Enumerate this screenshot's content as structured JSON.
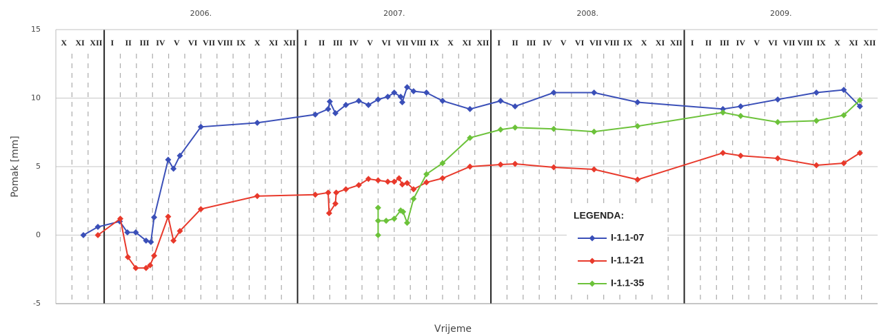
{
  "chart_data": {
    "type": "line",
    "ylabel": "Pomak [mm]",
    "xlabel": "Vrijeme",
    "legend_title": "LEGENDA:",
    "xlim": [
      0,
      51
    ],
    "ylim": [
      -5,
      15
    ],
    "yticks": [
      -5,
      0,
      5,
      10,
      15
    ],
    "grid": true,
    "year_ticks": [
      {
        "value": 9,
        "label": "2006."
      },
      {
        "value": 21,
        "label": "2007."
      },
      {
        "value": 33,
        "label": "2008."
      },
      {
        "value": 45,
        "label": "2009."
      }
    ],
    "xticks": [
      {
        "value": 0.5,
        "label": "X"
      },
      {
        "value": 1.5,
        "label": "XI"
      },
      {
        "value": 2.5,
        "label": "XII"
      },
      {
        "value": 3.5,
        "label": "I"
      },
      {
        "value": 4.5,
        "label": "II"
      },
      {
        "value": 5.5,
        "label": "III"
      },
      {
        "value": 6.5,
        "label": "IV"
      },
      {
        "value": 7.5,
        "label": "V"
      },
      {
        "value": 8.5,
        "label": "VI"
      },
      {
        "value": 9.5,
        "label": "VII"
      },
      {
        "value": 10.5,
        "label": "VIII"
      },
      {
        "value": 11.5,
        "label": "IX"
      },
      {
        "value": 12.5,
        "label": "X"
      },
      {
        "value": 13.5,
        "label": "XI"
      },
      {
        "value": 14.5,
        "label": "XII"
      },
      {
        "value": 15.5,
        "label": "I"
      },
      {
        "value": 16.5,
        "label": "II"
      },
      {
        "value": 17.5,
        "label": "III"
      },
      {
        "value": 18.5,
        "label": "IV"
      },
      {
        "value": 19.5,
        "label": "V"
      },
      {
        "value": 20.5,
        "label": "VI"
      },
      {
        "value": 21.5,
        "label": "VII"
      },
      {
        "value": 22.5,
        "label": "VIII"
      },
      {
        "value": 23.5,
        "label": "IX"
      },
      {
        "value": 24.5,
        "label": "X"
      },
      {
        "value": 25.5,
        "label": "XI"
      },
      {
        "value": 26.5,
        "label": "XII"
      },
      {
        "value": 27.5,
        "label": "I"
      },
      {
        "value": 28.5,
        "label": "II"
      },
      {
        "value": 29.5,
        "label": "III"
      },
      {
        "value": 30.5,
        "label": "IV"
      },
      {
        "value": 31.5,
        "label": "V"
      },
      {
        "value": 32.5,
        "label": "VI"
      },
      {
        "value": 33.5,
        "label": "VII"
      },
      {
        "value": 34.5,
        "label": "VIII"
      },
      {
        "value": 35.5,
        "label": "IX"
      },
      {
        "value": 36.5,
        "label": "X"
      },
      {
        "value": 37.5,
        "label": "XI"
      },
      {
        "value": 38.5,
        "label": "XII"
      },
      {
        "value": 39.5,
        "label": "I"
      },
      {
        "value": 40.5,
        "label": "II"
      },
      {
        "value": 41.5,
        "label": "III"
      },
      {
        "value": 42.5,
        "label": "IV"
      },
      {
        "value": 43.5,
        "label": "V"
      },
      {
        "value": 44.5,
        "label": "VI"
      },
      {
        "value": 45.5,
        "label": "VII"
      },
      {
        "value": 46.5,
        "label": "VIII"
      },
      {
        "value": 47.5,
        "label": "IX"
      },
      {
        "value": 48.5,
        "label": "X"
      },
      {
        "value": 49.5,
        "label": "XI"
      },
      {
        "value": 50.5,
        "label": "XII"
      }
    ],
    "series": [
      {
        "name": "I-1.1-07",
        "color": "#3a4fb8",
        "x": [
          1.71,
          2.61,
          3.97,
          4.44,
          4.96,
          5.6,
          5.9,
          6.1,
          6.97,
          7.3,
          7.7,
          9.0,
          12.5,
          16.1,
          16.9,
          17.0,
          17.35,
          18.0,
          18.8,
          19.4,
          20.0,
          20.6,
          21.0,
          21.4,
          21.5,
          21.8,
          22.2,
          23.0,
          24.0,
          25.7,
          27.6,
          28.5,
          30.9,
          33.4,
          36.1,
          41.4,
          42.5,
          44.8,
          47.2,
          48.9,
          49.9
        ],
        "values": [
          0.0,
          0.6,
          1.0,
          0.2,
          0.2,
          -0.4,
          -0.5,
          1.3,
          5.5,
          4.85,
          5.8,
          7.9,
          8.2,
          8.8,
          9.2,
          9.75,
          8.9,
          9.5,
          9.8,
          9.5,
          9.9,
          10.1,
          10.4,
          10.1,
          9.7,
          10.8,
          10.5,
          10.4,
          9.8,
          9.2,
          9.8,
          9.4,
          10.4,
          10.4,
          9.7,
          9.2,
          9.4,
          9.9,
          10.4,
          10.6,
          9.4
        ]
      },
      {
        "name": "I-1.1-21",
        "color": "#e8392b",
        "x": [
          2.61,
          4.0,
          4.47,
          4.96,
          5.6,
          5.85,
          6.1,
          6.97,
          7.3,
          7.7,
          9.0,
          12.5,
          16.1,
          16.9,
          16.96,
          17.35,
          17.4,
          18.0,
          18.8,
          19.4,
          20.0,
          20.6,
          21.0,
          21.3,
          21.5,
          21.8,
          22.2,
          23.0,
          24.0,
          25.7,
          27.6,
          28.5,
          30.9,
          33.4,
          36.1,
          41.4,
          42.5,
          44.8,
          47.2,
          48.9,
          49.9
        ],
        "values": [
          0.0,
          1.2,
          -1.6,
          -2.4,
          -2.4,
          -2.2,
          -1.5,
          1.35,
          -0.4,
          0.3,
          1.9,
          2.85,
          2.95,
          3.1,
          1.6,
          2.3,
          3.1,
          3.35,
          3.65,
          4.1,
          4.0,
          3.9,
          3.9,
          4.15,
          3.7,
          3.8,
          3.35,
          3.85,
          4.15,
          5.0,
          5.15,
          5.2,
          4.95,
          4.8,
          4.05,
          6.0,
          5.8,
          5.6,
          5.1,
          5.25,
          6.0
        ]
      },
      {
        "name": "I-1.1-35",
        "color": "#6cc23a",
        "x": [
          20.0,
          20.0,
          20.0,
          20.5,
          21.0,
          21.4,
          21.55,
          21.8,
          22.2,
          23.0,
          24.0,
          25.7,
          27.6,
          28.5,
          30.9,
          33.4,
          36.1,
          41.4,
          42.5,
          44.8,
          47.2,
          48.9,
          49.9
        ],
        "values": [
          2.0,
          0.0,
          1.05,
          1.05,
          1.2,
          1.8,
          1.7,
          0.9,
          2.65,
          4.45,
          5.25,
          7.1,
          7.7,
          7.85,
          7.75,
          7.55,
          7.95,
          8.95,
          8.7,
          8.25,
          8.35,
          8.75,
          9.85
        ]
      }
    ]
  }
}
